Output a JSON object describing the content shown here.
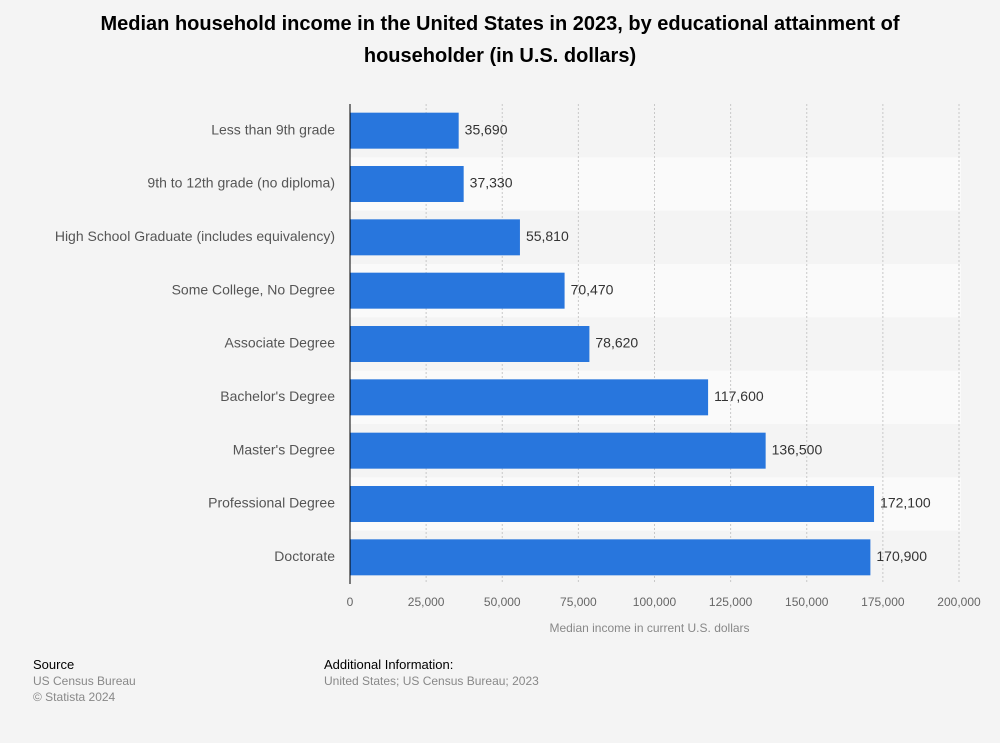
{
  "chart_data": {
    "type": "bar",
    "orientation": "horizontal",
    "title": "Median household income in the United States in 2023, by educational attainment of householder (in U.S. dollars)",
    "categories": [
      "Less than 9th grade",
      "9th to 12th grade (no diploma)",
      "High School Graduate (includes equivalency)",
      "Some College, No Degree",
      "Associate Degree",
      "Bachelor's Degree",
      "Master's Degree",
      "Professional Degree",
      "Doctorate"
    ],
    "values": [
      35690,
      37330,
      55810,
      70470,
      78620,
      117600,
      136500,
      172100,
      170900
    ],
    "value_labels": [
      "35,690",
      "37,330",
      "55,810",
      "70,470",
      "78,620",
      "117,600",
      "136,500",
      "172,100",
      "170,900"
    ],
    "color": "#2876dd",
    "xlabel": "Median income in current U.S. dollars",
    "xlim": [
      0,
      200000
    ],
    "xticks": [
      0,
      {
        "value": 25000,
        "label": "25,000"
      },
      {
        "value": 50000,
        "label": "50,000"
      },
      {
        "value": 75000,
        "label": "75,000"
      },
      {
        "value": 100000,
        "label": "100,000"
      },
      {
        "value": 125000,
        "label": "125,000"
      },
      {
        "value": 150000,
        "label": "150,000"
      },
      {
        "value": 175000,
        "label": "175,000"
      },
      {
        "value": 200000,
        "label": "200,000"
      }
    ],
    "grid": true
  },
  "source": {
    "heading": "Source",
    "lines": [
      "US Census Bureau",
      "© Statista 2024"
    ]
  },
  "additional_info": {
    "heading": "Additional Information:",
    "text": "United States; US Census Bureau; 2023"
  }
}
